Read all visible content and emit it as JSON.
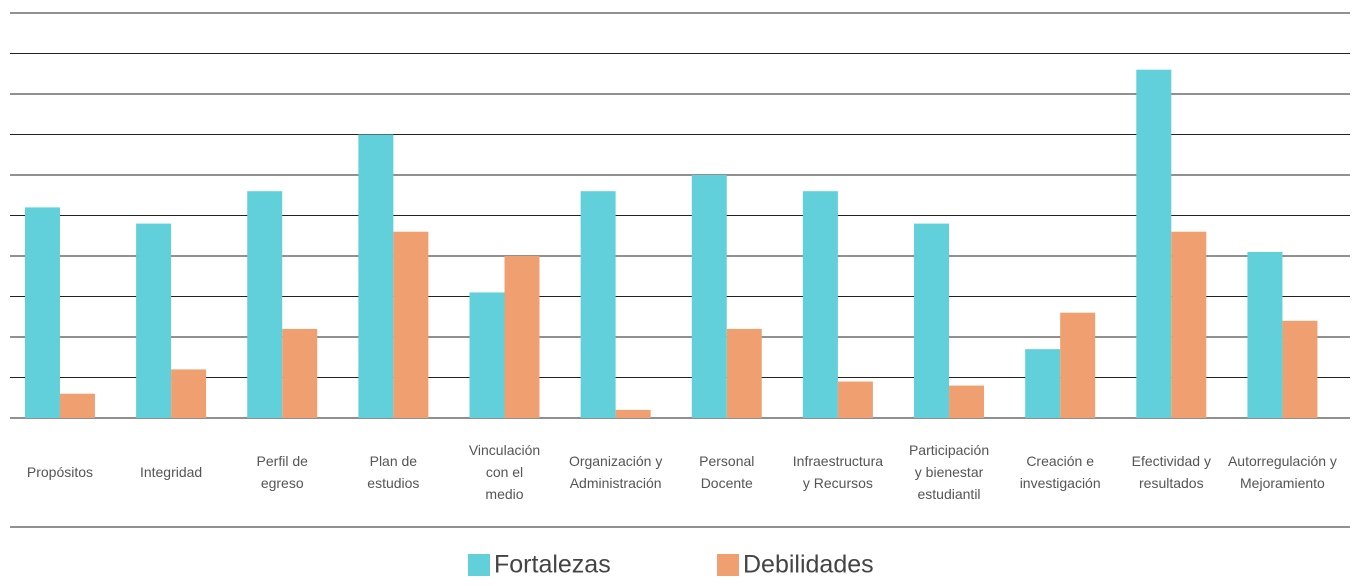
{
  "chart_data": {
    "type": "bar",
    "categories": [
      "Propósitos",
      "Integridad",
      "Perfil de\negreso",
      "Plan de\nestudios",
      "Vinculación\ncon el\nmedio",
      "Organización y\nAdministración",
      "Personal\nDocente",
      "Infraestructura\ny Recursos",
      "Participación\ny bienestar\nestudiantil",
      "Creación e\ninvestigación",
      "Efectividad y\nresultados",
      "Autorregulación y\nMejoramiento"
    ],
    "series": [
      {
        "name": "Fortalezas",
        "color": "#62d0da",
        "values": [
          5.2,
          4.8,
          5.6,
          7.0,
          3.1,
          5.6,
          6.0,
          5.6,
          4.8,
          1.7,
          8.6,
          4.1
        ]
      },
      {
        "name": "Debilidades",
        "color": "#f0a070",
        "values": [
          0.6,
          1.2,
          2.2,
          4.6,
          4.0,
          0.2,
          2.2,
          0.9,
          0.8,
          2.6,
          4.6,
          2.4
        ]
      }
    ],
    "ylim": [
      0,
      10
    ],
    "yticks": [
      0,
      1,
      2,
      3,
      4,
      5,
      6,
      7,
      8,
      9,
      10
    ],
    "grid": true,
    "legend": "bottom"
  }
}
